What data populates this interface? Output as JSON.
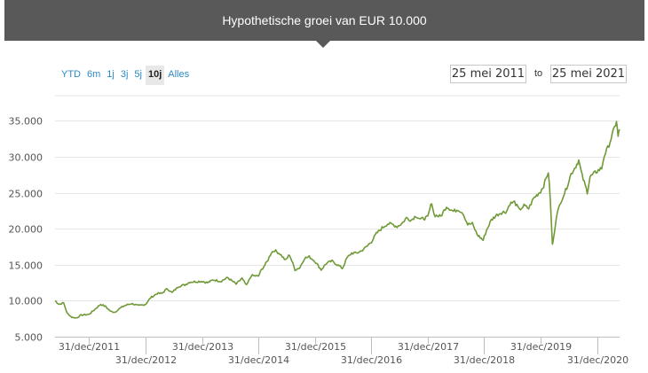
{
  "header": {
    "title": "Hypothetische groei van EUR 10.000"
  },
  "range_buttons": [
    {
      "label": "YTD",
      "active": false
    },
    {
      "label": "6m",
      "active": false
    },
    {
      "label": "1j",
      "active": false
    },
    {
      "label": "3j",
      "active": false
    },
    {
      "label": "5j",
      "active": false
    },
    {
      "label": "10j",
      "active": true
    },
    {
      "label": "Alles",
      "active": false
    }
  ],
  "date_range": {
    "from": "25 mei 2011",
    "to_label": "to",
    "to": "25 mei 2021"
  },
  "colors": {
    "line": "#6f9a37",
    "header_bg": "#595959",
    "link": "#2a8ac7"
  },
  "chart_data": {
    "type": "line",
    "title": "Hypothetische groei van EUR 10.000",
    "x_start": "2011-05-25",
    "x_end": "2021-05-25",
    "ylim": [
      5000,
      37000
    ],
    "y_ticks": [
      5000,
      10000,
      15000,
      20000,
      25000,
      30000,
      35000
    ],
    "y_tick_labels": [
      "5.000",
      "10.000",
      "15.000",
      "20.000",
      "25.000",
      "30.000",
      "35.000"
    ],
    "x_ticks": [
      "2011-12-31",
      "2012-12-31",
      "2013-12-31",
      "2014-12-31",
      "2015-12-31",
      "2016-12-31",
      "2017-12-31",
      "2018-12-31",
      "2019-12-31",
      "2020-12-31"
    ],
    "x_tick_labels": [
      "31/dec/2011",
      "31/dec/2012",
      "31/dec/2013",
      "31/dec/2014",
      "31/dec/2015",
      "31/dec/2016",
      "31/dec/2017",
      "31/dec/2018",
      "31/dec/2019",
      "31/dec/2020"
    ],
    "grid": true,
    "series": [
      {
        "points": [
          [
            "2011-05-25",
            10000
          ],
          [
            "2011-06-20",
            9500
          ],
          [
            "2011-07-20",
            9700
          ],
          [
            "2011-08-10",
            8300
          ],
          [
            "2011-09-10",
            7700
          ],
          [
            "2011-10-10",
            7600
          ],
          [
            "2011-11-10",
            8000
          ],
          [
            "2011-12-31",
            8100
          ],
          [
            "2012-02-01",
            8700
          ],
          [
            "2012-03-15",
            9500
          ],
          [
            "2012-04-15",
            9200
          ],
          [
            "2012-05-20",
            8500
          ],
          [
            "2012-06-15",
            8400
          ],
          [
            "2012-07-15",
            8900
          ],
          [
            "2012-08-15",
            9300
          ],
          [
            "2012-10-01",
            9600
          ],
          [
            "2012-11-15",
            9300
          ],
          [
            "2012-12-31",
            9500
          ],
          [
            "2013-02-01",
            10400
          ],
          [
            "2013-03-15",
            11000
          ],
          [
            "2013-04-15",
            11000
          ],
          [
            "2013-05-20",
            11700
          ],
          [
            "2013-06-20",
            11100
          ],
          [
            "2013-08-01",
            12000
          ],
          [
            "2013-09-10",
            12200
          ],
          [
            "2013-10-15",
            12600
          ],
          [
            "2013-12-31",
            12700
          ],
          [
            "2014-02-05",
            12500
          ],
          [
            "2014-03-15",
            12900
          ],
          [
            "2014-05-01",
            12700
          ],
          [
            "2014-06-15",
            13200
          ],
          [
            "2014-08-10",
            12300
          ],
          [
            "2014-09-15",
            13100
          ],
          [
            "2014-10-15",
            12100
          ],
          [
            "2014-11-15",
            13500
          ],
          [
            "2014-12-31",
            13400
          ],
          [
            "2015-01-20",
            14300
          ],
          [
            "2015-02-25",
            15400
          ],
          [
            "2015-03-25",
            16700
          ],
          [
            "2015-04-15",
            17000
          ],
          [
            "2015-05-20",
            16500
          ],
          [
            "2015-06-25",
            15600
          ],
          [
            "2015-07-20",
            16400
          ],
          [
            "2015-08-25",
            14300
          ],
          [
            "2015-09-25",
            14600
          ],
          [
            "2015-10-25",
            15900
          ],
          [
            "2015-11-25",
            16100
          ],
          [
            "2015-12-31",
            15500
          ],
          [
            "2016-02-10",
            14300
          ],
          [
            "2016-03-15",
            15200
          ],
          [
            "2016-04-20",
            15500
          ],
          [
            "2016-06-27",
            14500
          ],
          [
            "2016-07-25",
            15900
          ],
          [
            "2016-08-25",
            16600
          ],
          [
            "2016-09-25",
            16600
          ],
          [
            "2016-10-25",
            16900
          ],
          [
            "2016-11-25",
            17400
          ],
          [
            "2016-12-31",
            18200
          ],
          [
            "2017-02-01",
            19300
          ],
          [
            "2017-03-10",
            20100
          ],
          [
            "2017-04-15",
            20700
          ],
          [
            "2017-05-15",
            20600
          ],
          [
            "2017-06-15",
            20300
          ],
          [
            "2017-07-15",
            20700
          ],
          [
            "2017-08-15",
            21500
          ],
          [
            "2017-09-15",
            21200
          ],
          [
            "2017-10-15",
            21800
          ],
          [
            "2017-11-15",
            21300
          ],
          [
            "2017-12-31",
            21600
          ],
          [
            "2018-01-25",
            23700
          ],
          [
            "2018-02-10",
            21900
          ],
          [
            "2018-03-25",
            21700
          ],
          [
            "2018-05-01",
            23100
          ],
          [
            "2018-06-15",
            22400
          ],
          [
            "2018-07-15",
            22700
          ],
          [
            "2018-08-15",
            22200
          ],
          [
            "2018-09-15",
            20600
          ],
          [
            "2018-10-15",
            20700
          ],
          [
            "2018-11-15",
            19200
          ],
          [
            "2018-12-24",
            18400
          ],
          [
            "2019-01-15",
            19800
          ],
          [
            "2019-02-15",
            21200
          ],
          [
            "2019-03-15",
            21800
          ],
          [
            "2019-04-15",
            22200
          ],
          [
            "2019-05-25",
            22400
          ],
          [
            "2019-06-15",
            23500
          ],
          [
            "2019-07-15",
            23700
          ],
          [
            "2019-08-15",
            22600
          ],
          [
            "2019-09-15",
            23200
          ],
          [
            "2019-10-15",
            22800
          ],
          [
            "2019-11-15",
            24200
          ],
          [
            "2019-12-31",
            25200
          ],
          [
            "2020-01-20",
            26000
          ],
          [
            "2020-02-19",
            27900
          ],
          [
            "2020-03-03",
            24000
          ],
          [
            "2020-03-16",
            17800
          ],
          [
            "2020-03-23",
            18500
          ],
          [
            "2020-04-10",
            21600
          ],
          [
            "2020-05-10",
            23800
          ],
          [
            "2020-06-10",
            25300
          ],
          [
            "2020-07-15",
            27600
          ],
          [
            "2020-08-15",
            28700
          ],
          [
            "2020-09-02",
            29500
          ],
          [
            "2020-09-25",
            27300
          ],
          [
            "2020-10-28",
            25100
          ],
          [
            "2020-11-15",
            27200
          ],
          [
            "2020-12-31",
            28000
          ],
          [
            "2021-01-29",
            28400
          ],
          [
            "2021-02-15",
            30200
          ],
          [
            "2021-03-10",
            31200
          ],
          [
            "2021-04-15",
            33500
          ],
          [
            "2021-05-05",
            35000
          ],
          [
            "2021-05-15",
            32800
          ],
          [
            "2021-05-25",
            33800
          ]
        ]
      }
    ]
  }
}
